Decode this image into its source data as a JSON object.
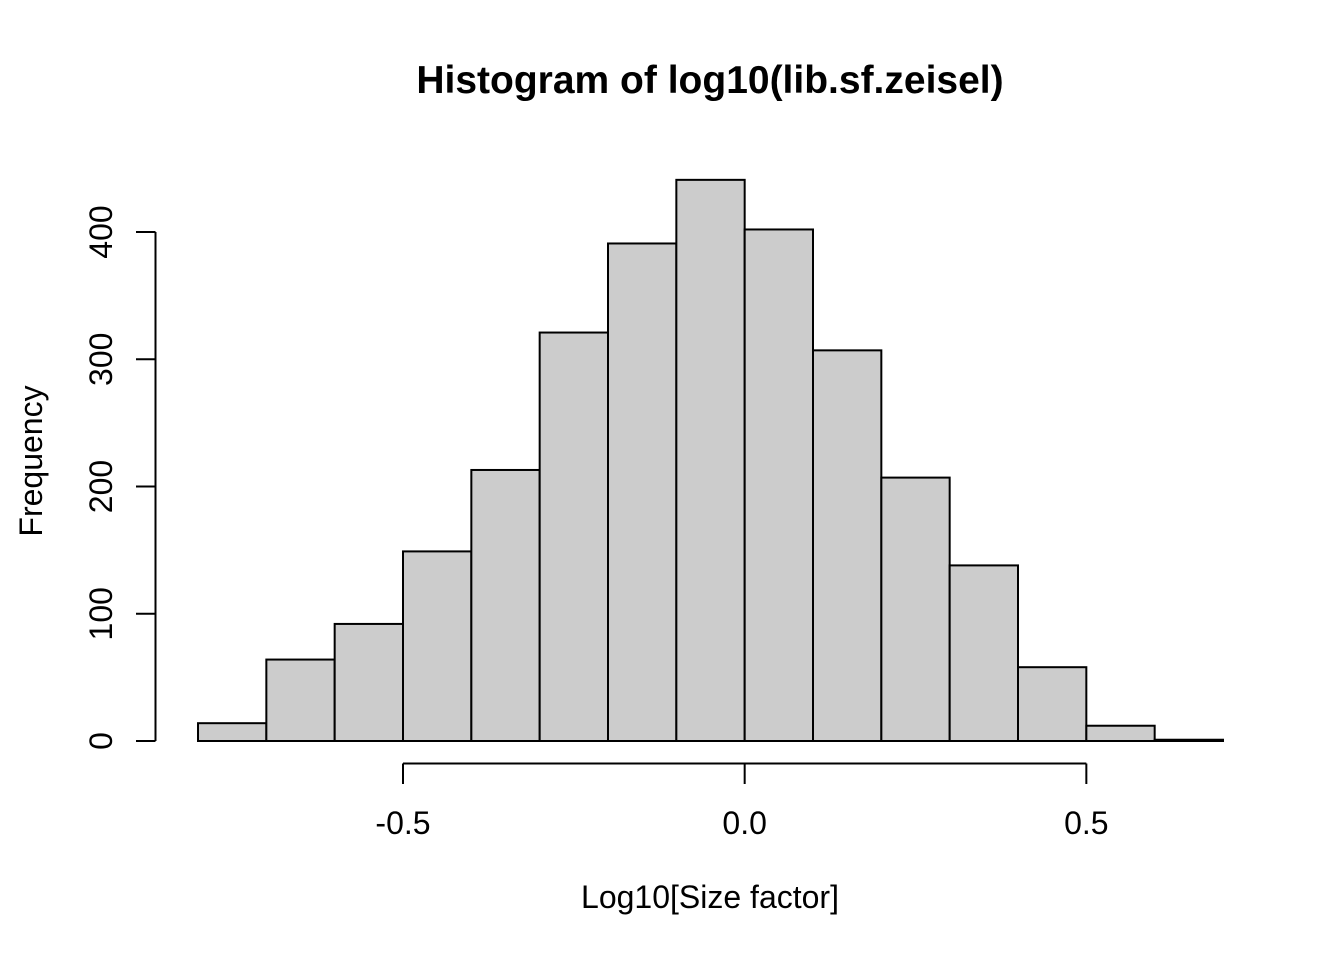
{
  "figure": {
    "title": "Histogram of log10(lib.sf.zeisel)",
    "xlabel": "Log10[Size factor]",
    "ylabel": "Frequency"
  },
  "chart_data": {
    "type": "bar",
    "subtype": "histogram",
    "title": "Histogram of log10(lib.sf.zeisel)",
    "xlabel": "Log10[Size factor]",
    "ylabel": "Frequency",
    "bin_start": -0.8,
    "bin_width": 0.1,
    "bin_edges": [
      -0.8,
      -0.7,
      -0.6,
      -0.5,
      -0.4,
      -0.3,
      -0.2,
      -0.1,
      0.0,
      0.1,
      0.2,
      0.3,
      0.4,
      0.5,
      0.6,
      0.7
    ],
    "frequencies": [
      14,
      64,
      92,
      149,
      213,
      321,
      391,
      441,
      402,
      307,
      207,
      138,
      58,
      12,
      1
    ],
    "x_ticks": [
      -0.5,
      0.0,
      0.5
    ],
    "x_tick_labels": [
      "-0.5",
      "0.0",
      "0.5"
    ],
    "y_ticks": [
      0,
      100,
      200,
      300,
      400
    ],
    "y_tick_labels": [
      "0",
      "100",
      "200",
      "300",
      "400"
    ],
    "xlim": [
      -0.86,
      0.76
    ],
    "ylim": [
      0,
      441
    ],
    "grid": false,
    "legend_position": "none",
    "colors": {
      "bar_fill": "#CCCCCC",
      "bar_border": "#000000",
      "axis": "#000000",
      "text": "#000000",
      "background": "#FFFFFF"
    }
  }
}
